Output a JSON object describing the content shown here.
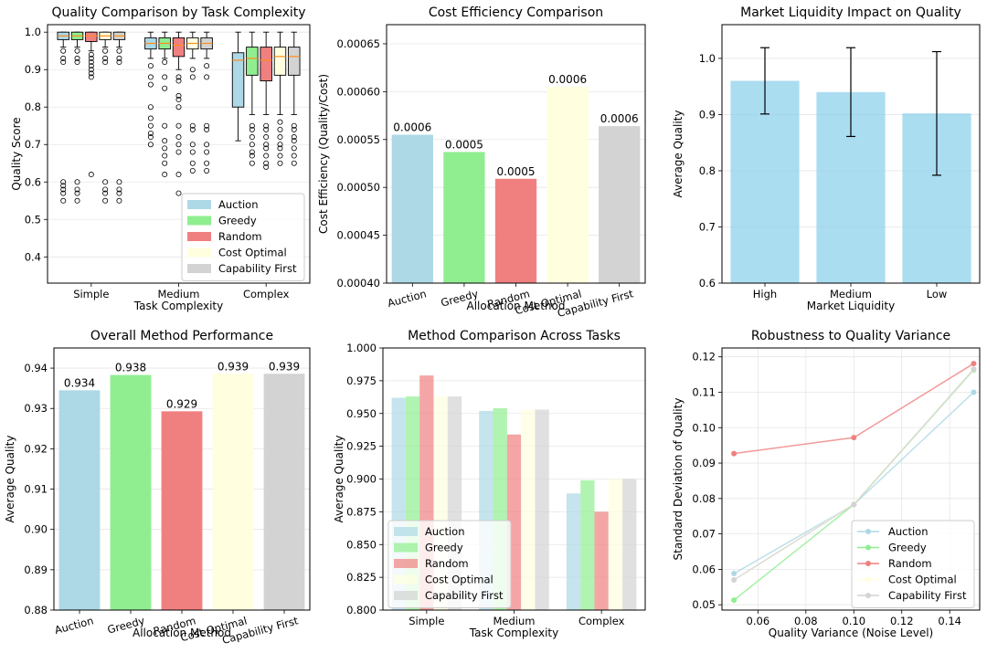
{
  "colors": {
    "Auction": "#add8e6",
    "Greedy": "#90ee90",
    "Random": "#f08080",
    "Cost Optimal": "#ffffe0",
    "Capability First": "#d3d3d3",
    "median": "#ff8c1a"
  },
  "chart_data": [
    {
      "id": "quality_box",
      "type": "box",
      "title": "Quality Comparison by Task Complexity",
      "xlabel": "Task Complexity",
      "ylabel": "Quality Score",
      "categories": [
        "Simple",
        "Medium",
        "Complex"
      ],
      "ylim": [
        0.33,
        1.02
      ],
      "yticks": [
        0.4,
        0.5,
        0.6,
        0.7,
        0.8,
        0.9,
        1.0
      ],
      "ytick_labels": [
        "0.4",
        "0.5",
        "0.6",
        "0.7",
        "0.8",
        "0.9",
        "1.0"
      ],
      "grid": true,
      "legend": "lower-right",
      "series": [
        {
          "name": "Auction",
          "boxes": [
            {
              "q1": 0.98,
              "med": 0.99,
              "q3": 1.0,
              "wlo": 0.96,
              "whi": 1.0,
              "fliers": [
                0.95,
                0.93,
                0.92,
                0.6,
                0.59,
                0.58,
                0.57,
                0.55
              ]
            },
            {
              "q1": 0.955,
              "med": 0.97,
              "q3": 0.985,
              "wlo": 0.93,
              "whi": 1.0,
              "fliers": [
                0.91,
                0.88,
                0.86,
                0.8,
                0.77,
                0.75,
                0.73,
                0.72,
                0.7
              ]
            },
            {
              "q1": 0.8,
              "med": 0.925,
              "q3": 0.945,
              "wlo": 0.71,
              "whi": 1.0,
              "fliers": []
            }
          ]
        },
        {
          "name": "Greedy",
          "boxes": [
            {
              "q1": 0.98,
              "med": 0.99,
              "q3": 1.0,
              "wlo": 0.96,
              "whi": 1.0,
              "fliers": [
                0.95,
                0.93,
                0.92,
                0.6,
                0.58,
                0.57,
                0.55
              ]
            },
            {
              "q1": 0.955,
              "med": 0.97,
              "q3": 0.985,
              "wlo": 0.93,
              "whi": 1.0,
              "fliers": [
                0.92,
                0.88,
                0.85,
                0.75,
                0.71,
                0.69,
                0.67,
                0.65,
                0.62
              ]
            },
            {
              "q1": 0.885,
              "med": 0.93,
              "q3": 0.96,
              "wlo": 0.78,
              "whi": 1.0,
              "fliers": [
                0.75,
                0.74,
                0.72,
                0.7,
                0.68,
                0.67,
                0.65
              ]
            }
          ]
        },
        {
          "name": "Random",
          "boxes": [
            {
              "q1": 0.975,
              "med": 0.99,
              "q3": 1.0,
              "wlo": 0.95,
              "whi": 1.0,
              "fliers": [
                0.94,
                0.93,
                0.92,
                0.91,
                0.9,
                0.89,
                0.88,
                0.62
              ]
            },
            {
              "q1": 0.935,
              "med": 0.965,
              "q3": 0.985,
              "wlo": 0.9,
              "whi": 1.0,
              "fliers": [
                0.88,
                0.87,
                0.83,
                0.82,
                0.8,
                0.75,
                0.72,
                0.7,
                0.68,
                0.62,
                0.57
              ]
            },
            {
              "q1": 0.87,
              "med": 0.925,
              "q3": 0.96,
              "wlo": 0.78,
              "whi": 1.0,
              "fliers": [
                0.75,
                0.74,
                0.72,
                0.7,
                0.69,
                0.67,
                0.65,
                0.64
              ]
            }
          ]
        },
        {
          "name": "Cost Optimal",
          "boxes": [
            {
              "q1": 0.98,
              "med": 0.99,
              "q3": 1.0,
              "wlo": 0.96,
              "whi": 1.0,
              "fliers": [
                0.95,
                0.93,
                0.92,
                0.6,
                0.58,
                0.57,
                0.55
              ]
            },
            {
              "q1": 0.955,
              "med": 0.97,
              "q3": 0.985,
              "wlo": 0.93,
              "whi": 1.0,
              "fliers": [
                0.9,
                0.88,
                0.75,
                0.74,
                0.7,
                0.68,
                0.65,
                0.63
              ]
            },
            {
              "q1": 0.885,
              "med": 0.935,
              "q3": 0.96,
              "wlo": 0.78,
              "whi": 1.0,
              "fliers": [
                0.76,
                0.74,
                0.72,
                0.7,
                0.69,
                0.67,
                0.65
              ]
            }
          ]
        },
        {
          "name": "Capability First",
          "boxes": [
            {
              "q1": 0.98,
              "med": 0.99,
              "q3": 1.0,
              "wlo": 0.96,
              "whi": 1.0,
              "fliers": [
                0.95,
                0.93,
                0.92,
                0.6,
                0.58,
                0.57,
                0.55
              ]
            },
            {
              "q1": 0.955,
              "med": 0.97,
              "q3": 0.985,
              "wlo": 0.93,
              "whi": 1.0,
              "fliers": [
                0.91,
                0.88,
                0.75,
                0.74,
                0.7,
                0.68,
                0.65,
                0.63
              ]
            },
            {
              "q1": 0.885,
              "med": 0.935,
              "q3": 0.96,
              "wlo": 0.78,
              "whi": 1.0,
              "fliers": [
                0.75,
                0.74,
                0.72,
                0.71,
                0.69,
                0.67,
                0.65
              ]
            }
          ]
        }
      ]
    },
    {
      "id": "cost_eff",
      "type": "bar",
      "title": "Cost Efficiency Comparison",
      "xlabel": "Allocation Method",
      "ylabel": "Cost Efficiency (Quality/Cost)",
      "categories": [
        "Auction",
        "Greedy",
        "Random",
        "Cost Optimal",
        "Capability First"
      ],
      "values": [
        0.000555,
        0.000537,
        0.000509,
        0.000605,
        0.000564
      ],
      "value_labels": [
        "0.0006",
        "0.0005",
        "0.0005",
        "0.0006",
        "0.0006"
      ],
      "ylim": [
        0.0004,
        0.00067
      ],
      "yticks": [
        0.0004,
        0.00045,
        0.0005,
        0.00055,
        0.0006,
        0.00065
      ],
      "ytick_labels": [
        "0.00040",
        "0.00045",
        "0.00050",
        "0.00055",
        "0.00060",
        "0.00065"
      ],
      "grid": true
    },
    {
      "id": "liquidity",
      "type": "bar",
      "title": "Market Liquidity Impact on Quality",
      "xlabel": "Market Liquidity",
      "ylabel": "Average Quality",
      "categories": [
        "High",
        "Medium",
        "Low"
      ],
      "values": [
        0.96,
        0.94,
        0.902
      ],
      "errors": [
        0.059,
        0.079,
        0.11
      ],
      "ylim": [
        0.6,
        1.06
      ],
      "yticks": [
        0.6,
        0.7,
        0.8,
        0.9,
        1.0
      ],
      "ytick_labels": [
        "0.6",
        "0.7",
        "0.8",
        "0.9",
        "1.0"
      ],
      "grid": true
    },
    {
      "id": "overall",
      "type": "bar",
      "title": "Overall Method Performance",
      "xlabel": "Allocation Method",
      "ylabel": "Average Quality",
      "categories": [
        "Auction",
        "Greedy",
        "Random",
        "Cost Optimal",
        "Capability First"
      ],
      "values": [
        0.9345,
        0.9383,
        0.9293,
        0.9386,
        0.9386
      ],
      "value_labels": [
        "0.934",
        "0.938",
        "0.929",
        "0.939",
        "0.939"
      ],
      "ylim": [
        0.88,
        0.945
      ],
      "yticks": [
        0.88,
        0.89,
        0.9,
        0.91,
        0.92,
        0.93,
        0.94
      ],
      "ytick_labels": [
        "0.88",
        "0.89",
        "0.90",
        "0.91",
        "0.92",
        "0.93",
        "0.94"
      ],
      "grid": true
    },
    {
      "id": "across",
      "type": "bar",
      "title": "Method Comparison Across Tasks",
      "xlabel": "Task Complexity",
      "ylabel": "Average Quality",
      "categories": [
        "Simple",
        "Medium",
        "Complex"
      ],
      "series": [
        {
          "name": "Auction",
          "values": [
            0.962,
            0.952,
            0.889
          ]
        },
        {
          "name": "Greedy",
          "values": [
            0.963,
            0.954,
            0.899
          ]
        },
        {
          "name": "Random",
          "values": [
            0.979,
            0.934,
            0.875
          ]
        },
        {
          "name": "Cost Optimal",
          "values": [
            0.963,
            0.953,
            0.9
          ]
        },
        {
          "name": "Capability First",
          "values": [
            0.963,
            0.953,
            0.9
          ]
        }
      ],
      "ylim": [
        0.8,
        1.0
      ],
      "yticks": [
        0.8,
        0.825,
        0.85,
        0.875,
        0.9,
        0.925,
        0.95,
        0.975,
        1.0
      ],
      "ytick_labels": [
        "0.800",
        "0.825",
        "0.850",
        "0.875",
        "0.900",
        "0.925",
        "0.950",
        "0.975",
        "1.000"
      ],
      "legend": "lower-left",
      "grid": true
    },
    {
      "id": "robust",
      "type": "line",
      "title": "Robustness to Quality Variance",
      "xlabel": "Quality Variance (Noise Level)",
      "ylabel": "Standard Deviation of Quality",
      "x": [
        0.05,
        0.1,
        0.15
      ],
      "series": [
        {
          "name": "Auction",
          "values": [
            0.0588,
            0.0783,
            0.11
          ]
        },
        {
          "name": "Greedy",
          "values": [
            0.0513,
            0.0783,
            0.1163
          ]
        },
        {
          "name": "Random",
          "values": [
            0.0927,
            0.0972,
            0.1181
          ]
        },
        {
          "name": "Cost Optimal",
          "values": [
            0.057,
            0.0785,
            0.1165
          ]
        },
        {
          "name": "Capability First",
          "values": [
            0.057,
            0.0783,
            0.1165
          ]
        }
      ],
      "xlim": [
        0.045,
        0.1525
      ],
      "ylim": [
        0.0485,
        0.1225
      ],
      "xticks": [
        0.06,
        0.08,
        0.1,
        0.12,
        0.14
      ],
      "xtick_labels": [
        "0.06",
        "0.08",
        "0.10",
        "0.12",
        "0.14"
      ],
      "yticks": [
        0.05,
        0.06,
        0.07,
        0.08,
        0.09,
        0.1,
        0.11,
        0.12
      ],
      "ytick_labels": [
        "0.05",
        "0.06",
        "0.07",
        "0.08",
        "0.09",
        "0.10",
        "0.11",
        "0.12"
      ],
      "legend": "lower-right",
      "grid": true
    }
  ]
}
